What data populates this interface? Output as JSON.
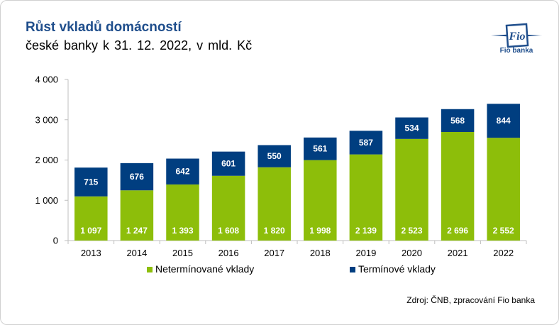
{
  "header": {
    "title": "Růst vkladů domácností",
    "subtitle": "české banky  k 31. 12. 2022, v mld. Kč"
  },
  "logo": {
    "mark_text": "Fio",
    "caption": "Fio banka",
    "color": "#1f4e8c"
  },
  "source": "Zdroj: ČNB, zpracování Fio banka",
  "chart_data": {
    "type": "bar",
    "stacked": true,
    "categories": [
      "2013",
      "2014",
      "2015",
      "2016",
      "2017",
      "2018",
      "2019",
      "2020",
      "2021",
      "2022"
    ],
    "series": [
      {
        "name": "Netermínované vklady",
        "color": "#8dbe0a",
        "values": [
          1097,
          1247,
          1393,
          1608,
          1820,
          1998,
          2139,
          2523,
          2696,
          2552
        ],
        "labels": [
          "1 097",
          "1 247",
          "1 393",
          "1 608",
          "1 820",
          "1 998",
          "2 139",
          "2 523",
          "2 696",
          "2 552"
        ]
      },
      {
        "name": "Termínové vklady",
        "color": "#003e80",
        "values": [
          715,
          676,
          642,
          601,
          550,
          561,
          587,
          534,
          568,
          844
        ],
        "labels": [
          "715",
          "676",
          "642",
          "601",
          "550",
          "561",
          "587",
          "534",
          "568",
          "844"
        ]
      }
    ],
    "ylim": [
      0,
      4000
    ],
    "yticks": [
      0,
      1000,
      2000,
      3000,
      4000
    ],
    "ytick_labels": [
      "0",
      "1 000",
      "2 000",
      "3 000",
      "4 000"
    ],
    "grid": false,
    "legend_position": "bottom"
  }
}
